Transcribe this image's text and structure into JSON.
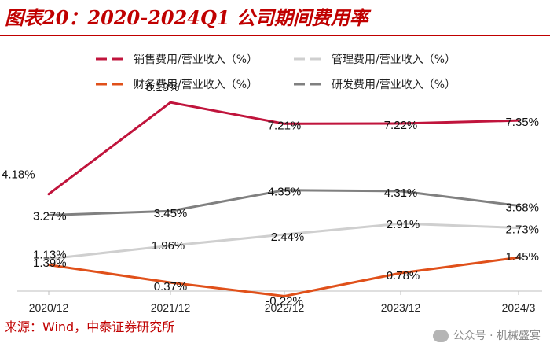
{
  "header": {
    "title": "图表20：2020-2024Q1 公司期间费用率"
  },
  "chart_data": {
    "type": "line",
    "title": "图表20：2020-2024Q1 公司期间费用率",
    "categories": [
      "2020/12",
      "2021/12",
      "2022/12",
      "2023/12",
      "2024/3"
    ],
    "ylim": [
      0,
      9
    ],
    "xlabel": "",
    "ylabel": "",
    "legend_position": "top",
    "grid": false,
    "series": [
      {
        "name": "销售费用/营业收入（%）",
        "color": "#c0143c",
        "values": [
          4.18,
          8.13,
          7.21,
          7.22,
          7.35
        ],
        "labels": [
          "4.18%",
          "8.13%",
          "7.21%",
          "7.22%",
          "7.35%"
        ]
      },
      {
        "name": "管理费用/营业收入（%）",
        "color": "#cfcfcf",
        "values": [
          1.39,
          1.96,
          2.44,
          2.91,
          2.73
        ],
        "labels": [
          "1.39%",
          "1.96%",
          "2.44%",
          "2.91%",
          "2.73%"
        ]
      },
      {
        "name": "财务费用/营业收入（%）",
        "color": "#e0501a",
        "values": [
          1.13,
          0.37,
          -0.22,
          0.78,
          1.45
        ],
        "labels": [
          "1.13%",
          "0.37%",
          "-0.22%",
          "0.78%",
          "1.45%"
        ]
      },
      {
        "name": "研发费用/营业收入（%）",
        "color": "#808080",
        "values": [
          3.27,
          3.45,
          4.35,
          4.31,
          3.68
        ],
        "labels": [
          "3.27%",
          "3.45%",
          "4.35%",
          "4.31%",
          "3.68%"
        ]
      }
    ]
  },
  "footer": {
    "source": "来源：Wind，中泰证券研究所",
    "watermark": "公众号 · 机械盛宴"
  }
}
